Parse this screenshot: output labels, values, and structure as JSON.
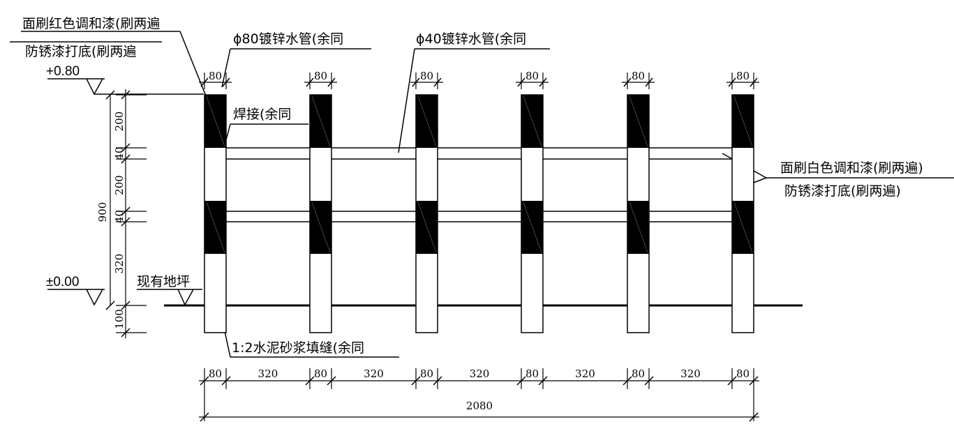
{
  "labels": {
    "red_paint": "面刷红色调和漆(刷两遍",
    "primer_left": "防锈漆打底(刷两遍",
    "pipe_80": "ϕ80镀锌水管(余同",
    "pipe_40": "ϕ40镀锌水管(余同",
    "weld": "焊接(余同",
    "white_paint": "面刷白色调和漆(刷两遍)",
    "primer_right": "防锈漆打底(刷两遍)",
    "ground_existing": "现有地坪",
    "mortar": "1:2水泥砂浆填缝(余同"
  },
  "elevations": {
    "top": "+0.80",
    "zero": "±0.00"
  },
  "post_width": "80",
  "vertical_dims": [
    "200",
    "40",
    "200",
    "40",
    "320",
    "100"
  ],
  "total_height": "900",
  "horizontal_dims": [
    "80",
    "320",
    "80",
    "320",
    "80",
    "320",
    "80",
    "320",
    "80",
    "320",
    "80"
  ],
  "total_width": "2080",
  "colors": {
    "line": "#000000",
    "paint_band": "#000000",
    "background": "#ffffff"
  }
}
